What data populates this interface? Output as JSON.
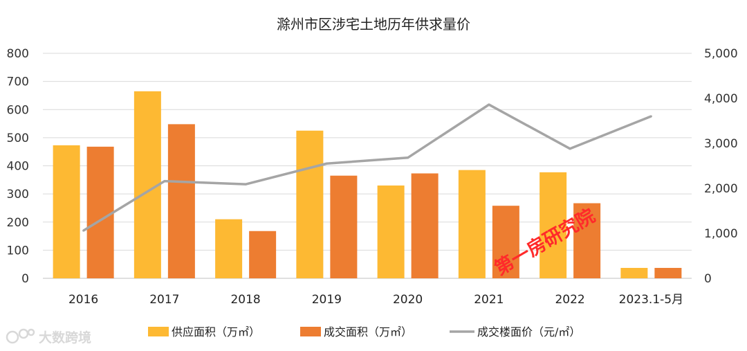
{
  "chart_data": {
    "type": "bar+line",
    "title": "滁州市区涉宅土地历年供求量价",
    "categories": [
      "2016",
      "2017",
      "2018",
      "2019",
      "2020",
      "2021",
      "2022",
      "2023.1-5月"
    ],
    "series": [
      {
        "name": "供应面积（万㎡）",
        "type": "bar",
        "axis": "left",
        "color": "#FDB933",
        "values": [
          473,
          665,
          210,
          525,
          330,
          385,
          377,
          37
        ]
      },
      {
        "name": "成交面积（万㎡）",
        "type": "bar",
        "axis": "left",
        "color": "#ED7D31",
        "values": [
          468,
          548,
          168,
          365,
          373,
          258,
          267,
          37
        ]
      },
      {
        "name": "成交楼面价（元/㎡）",
        "type": "line",
        "axis": "right",
        "color": "#A5A5A5",
        "values": [
          1060,
          2160,
          2090,
          2550,
          2680,
          3860,
          2880,
          3600
        ]
      }
    ],
    "y_left": {
      "min": 0,
      "max": 800,
      "ticks": [
        "0",
        "100",
        "200",
        "300",
        "400",
        "500",
        "600",
        "700",
        "800"
      ]
    },
    "y_right": {
      "min": 0,
      "max": 5000,
      "ticks": [
        "0",
        "1,000",
        "2,000",
        "3,000",
        "4,000",
        "5,000"
      ]
    },
    "grid": true,
    "legend_position": "bottom"
  },
  "watermarks": {
    "center": "第一房研究院",
    "bottom_left": "大数跨境"
  }
}
